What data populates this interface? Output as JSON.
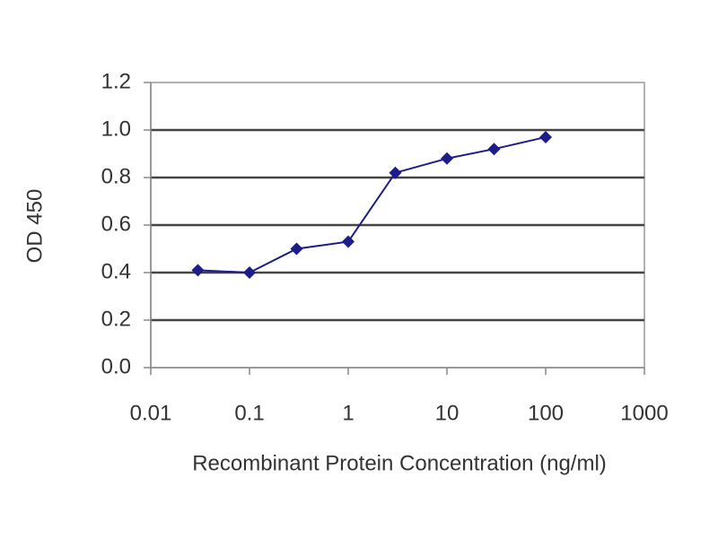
{
  "chart_data": {
    "type": "line",
    "xlabel": "Recombinant Protein Concentration (ng/ml)",
    "ylabel": "OD 450",
    "x": [
      0.03,
      0.1,
      0.3,
      1,
      3,
      10,
      30,
      100
    ],
    "values": [
      0.41,
      0.4,
      0.5,
      0.53,
      0.82,
      0.88,
      0.92,
      0.97
    ],
    "color": "#1c1c8a",
    "xscale": "log",
    "xlim": [
      0.01,
      1000
    ],
    "xticks": [
      0.01,
      0.1,
      1,
      10,
      100,
      1000
    ],
    "ylim": [
      0,
      1.2
    ],
    "yticks": [
      {
        "value": 0,
        "label": "0.0"
      },
      0.2,
      0.4,
      0.6,
      0.8,
      {
        "value": 1,
        "label": "1.0"
      },
      1.2
    ],
    "grid": true
  }
}
